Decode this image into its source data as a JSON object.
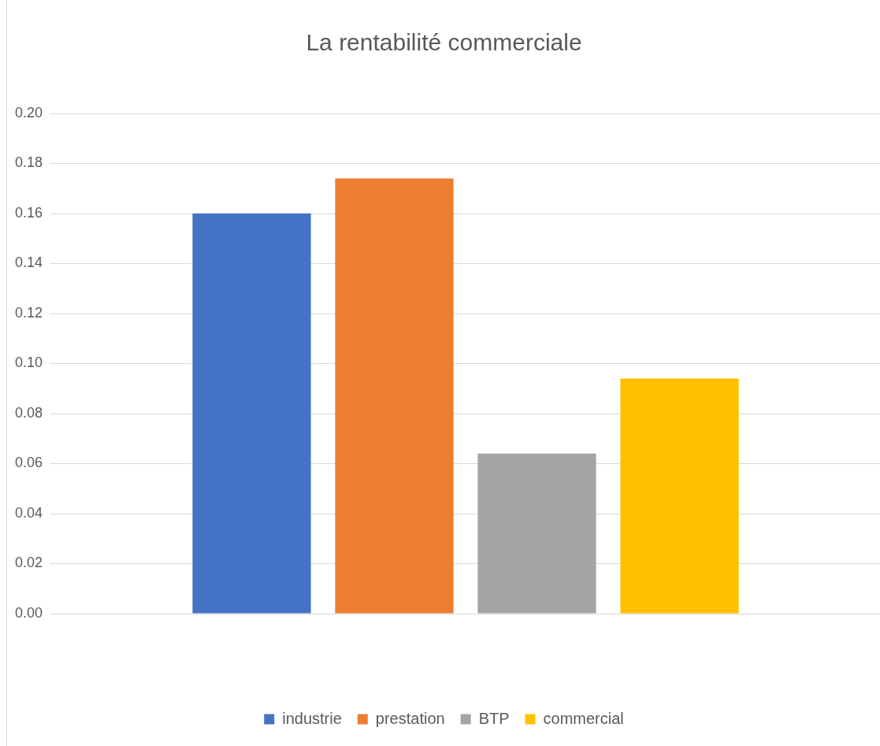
{
  "chart_data": {
    "type": "bar",
    "title": "La rentabilité commerciale",
    "categories": [
      null
    ],
    "series": [
      {
        "name": "industrie",
        "color": "#4472c4",
        "values": [
          0.16
        ]
      },
      {
        "name": "prestation",
        "color": "#ed7d31",
        "values": [
          0.174
        ]
      },
      {
        "name": "BTP",
        "color": "#a5a5a5",
        "values": [
          0.064
        ]
      },
      {
        "name": "commercial",
        "color": "#ffc000",
        "values": [
          0.094
        ]
      }
    ],
    "ylim": [
      0,
      0.2
    ],
    "yticks": [
      {
        "value": 0,
        "label": "0.00"
      },
      {
        "value": 0.02,
        "label": "0.02"
      },
      {
        "value": 0.04,
        "label": "0.04"
      },
      {
        "value": 0.06,
        "label": "0.06"
      },
      {
        "value": 0.08,
        "label": "0.08"
      },
      {
        "value": 0.1,
        "label": "0.10"
      },
      {
        "value": 0.12,
        "label": "0.12"
      },
      {
        "value": 0.14,
        "label": "0.14"
      },
      {
        "value": 0.16,
        "label": "0.16"
      },
      {
        "value": 0.18,
        "label": "0.18"
      },
      {
        "value": 0.2,
        "label": "0.20"
      }
    ],
    "grid": "y",
    "legend": "bottom"
  }
}
